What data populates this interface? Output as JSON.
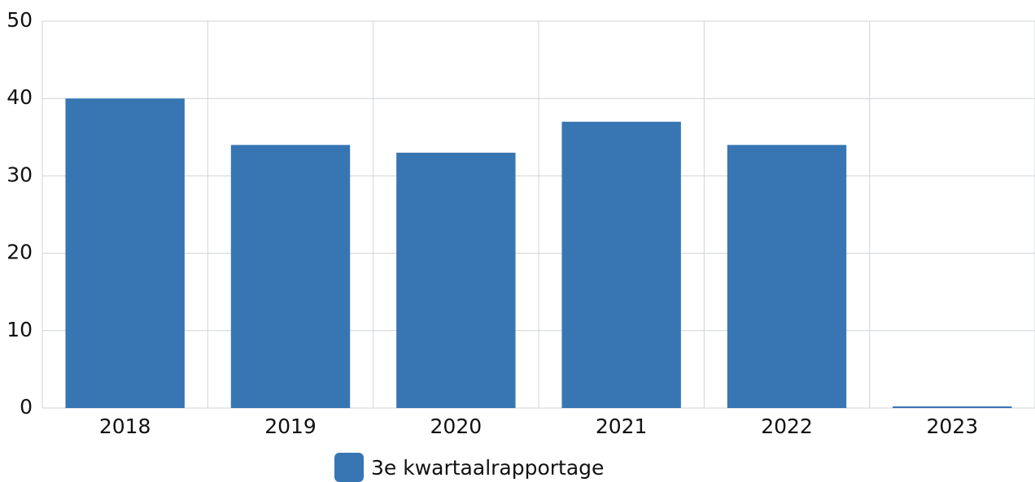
{
  "chart_data": {
    "type": "bar",
    "categories": [
      "2018",
      "2019",
      "2020",
      "2021",
      "2022",
      "2023"
    ],
    "series": [
      {
        "name": "3e kwartaalrapportage",
        "color": "#3776b3",
        "values": [
          40,
          34,
          33,
          37,
          34,
          0
        ]
      }
    ],
    "ylim": [
      0,
      50
    ],
    "yticks": [
      0,
      10,
      20,
      30,
      40,
      50
    ],
    "grid": true,
    "legend": "bottom"
  }
}
